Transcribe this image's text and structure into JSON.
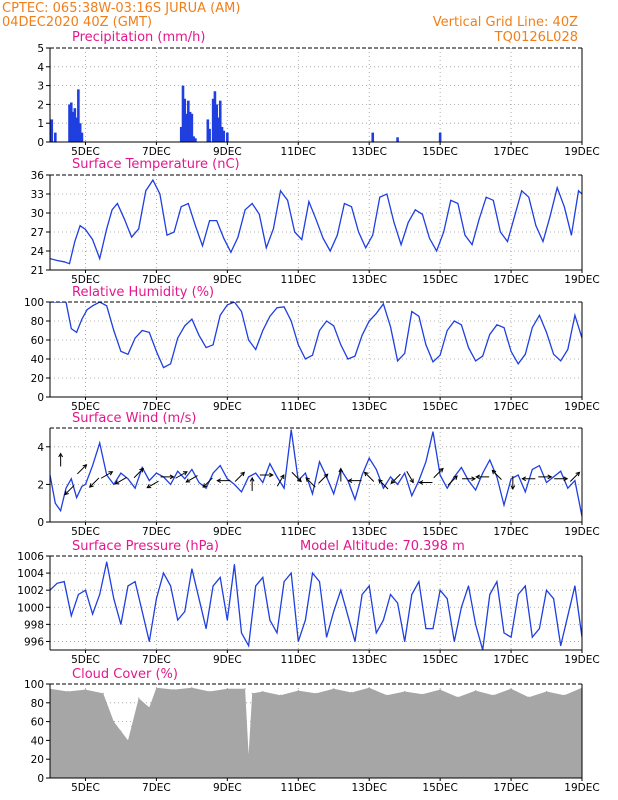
{
  "header": {
    "line1": "CPTEC:   065:38W-03:16S   JURUA (AM)",
    "line2": "04DEC2020 40Z (GMT)",
    "right1": "Vertical Grid Line: 40Z",
    "right2": "TQ0126L028"
  },
  "x_axis": {
    "start": "04DEC2020",
    "end": "19DEC2020",
    "ticks": [
      "5DEC",
      "7DEC",
      "9DEC",
      "11DEC",
      "13DEC",
      "15DEC",
      "17DEC",
      "19DEC"
    ]
  },
  "colors": {
    "line": "#1f3fe0",
    "bar": "#1f3fe0",
    "cloud": "#a6a6a6",
    "header": "#f07f1a",
    "title": "#e4188c",
    "wind_arrow": "#000000"
  },
  "chart_data": [
    {
      "type": "bar",
      "title": "Precipitation (mm/h)",
      "ylim": [
        0,
        5
      ],
      "yticks": [
        0,
        1,
        2,
        3,
        4,
        5
      ],
      "grid": true,
      "x": [
        0.05,
        0.15,
        0.55,
        0.6,
        0.65,
        0.7,
        0.75,
        0.8,
        0.85,
        0.9,
        3.7,
        3.75,
        3.8,
        3.85,
        3.9,
        3.95,
        4.0,
        4.05,
        4.1,
        4.45,
        4.5,
        4.6,
        4.65,
        4.7,
        4.75,
        4.8,
        4.85,
        4.9,
        5.0,
        9.1,
        9.8,
        11.0
      ],
      "values": [
        1.2,
        0.5,
        2.0,
        2.1,
        1.6,
        1.8,
        1.3,
        2.8,
        1.0,
        0.5,
        0.8,
        3.0,
        2.3,
        1.5,
        2.2,
        1.6,
        1.5,
        0.3,
        0.2,
        1.2,
        0.7,
        2.3,
        2.7,
        2.0,
        1.3,
        2.2,
        0.8,
        0.6,
        0.5,
        0.5,
        0.25,
        0.5
      ]
    },
    {
      "type": "line",
      "title": "Surface Temperature (nC)",
      "ylim": [
        21,
        36
      ],
      "yticks": [
        21,
        24,
        27,
        30,
        33,
        36
      ],
      "grid": true,
      "x": [
        0,
        0.2,
        0.4,
        0.55,
        0.7,
        0.85,
        1.0,
        1.2,
        1.4,
        1.6,
        1.75,
        1.9,
        2.1,
        2.3,
        2.5,
        2.7,
        2.9,
        3.1,
        3.3,
        3.5,
        3.7,
        3.9,
        4.1,
        4.3,
        4.5,
        4.7,
        4.9,
        5.1,
        5.3,
        5.5,
        5.7,
        5.9,
        6.1,
        6.3,
        6.5,
        6.7,
        6.9,
        7.1,
        7.3,
        7.5,
        7.7,
        7.9,
        8.1,
        8.3,
        8.5,
        8.7,
        8.9,
        9.1,
        9.3,
        9.5,
        9.7,
        9.9,
        10.1,
        10.3,
        10.5,
        10.7,
        10.9,
        11.1,
        11.3,
        11.5,
        11.7,
        11.9,
        12.1,
        12.3,
        12.5,
        12.7,
        12.9,
        13.1,
        13.3,
        13.5,
        13.7,
        13.9,
        14.1,
        14.3,
        14.5,
        14.7,
        14.9,
        15.0
      ],
      "values": [
        22.8,
        22.5,
        22.3,
        22.0,
        25.5,
        28.0,
        27.4,
        25.8,
        22.8,
        27.5,
        30.5,
        31.5,
        29.0,
        26.2,
        27.5,
        33.5,
        35.2,
        33.0,
        26.5,
        27.0,
        31.0,
        31.5,
        28.0,
        24.8,
        28.8,
        28.8,
        26.0,
        23.8,
        26.2,
        30.5,
        31.5,
        29.8,
        24.5,
        27.5,
        33.5,
        32.0,
        27.0,
        25.8,
        31.8,
        29.0,
        26.0,
        24.0,
        26.5,
        31.5,
        31.0,
        27.0,
        24.5,
        26.5,
        32.5,
        33.0,
        28.5,
        25.0,
        28.5,
        30.5,
        29.8,
        26.0,
        24.0,
        27.0,
        32.0,
        31.5,
        26.5,
        25.0,
        29.0,
        32.5,
        32.0,
        27.0,
        25.5,
        29.5,
        33.5,
        32.5,
        28.0,
        25.5,
        29.5,
        34.0,
        31.0,
        26.5,
        33.5,
        33.0
      ]
    },
    {
      "type": "line",
      "title": "Relative Humidity (%)",
      "ylim": [
        0,
        100
      ],
      "yticks": [
        0,
        20,
        40,
        60,
        80,
        100
      ],
      "grid": true,
      "x": [
        0,
        0.15,
        0.3,
        0.45,
        0.6,
        0.75,
        0.9,
        1.05,
        1.2,
        1.4,
        1.6,
        1.8,
        2.0,
        2.2,
        2.4,
        2.6,
        2.8,
        3.0,
        3.2,
        3.4,
        3.6,
        3.8,
        4.0,
        4.2,
        4.4,
        4.6,
        4.8,
        5.0,
        5.2,
        5.4,
        5.6,
        5.8,
        6.0,
        6.2,
        6.4,
        6.6,
        6.8,
        7.0,
        7.2,
        7.4,
        7.6,
        7.8,
        8.0,
        8.2,
        8.4,
        8.6,
        8.8,
        9.0,
        9.2,
        9.4,
        9.6,
        9.8,
        10.0,
        10.2,
        10.4,
        10.6,
        10.8,
        11.0,
        11.2,
        11.4,
        11.6,
        11.8,
        12.0,
        12.2,
        12.4,
        12.6,
        12.8,
        13.0,
        13.2,
        13.4,
        13.6,
        13.8,
        14.0,
        14.2,
        14.4,
        14.6,
        14.8,
        15.0
      ],
      "values": [
        100,
        100,
        100,
        100,
        72,
        68,
        82,
        92,
        96,
        100,
        96,
        70,
        48,
        45,
        62,
        70,
        68,
        48,
        31,
        35,
        62,
        75,
        82,
        65,
        52,
        55,
        86,
        97,
        100,
        90,
        60,
        50,
        70,
        85,
        94,
        95,
        80,
        55,
        40,
        44,
        70,
        80,
        75,
        55,
        40,
        43,
        65,
        80,
        88,
        98,
        74,
        38,
        46,
        90,
        85,
        55,
        37,
        44,
        70,
        80,
        76,
        52,
        38,
        43,
        66,
        76,
        73,
        48,
        35,
        45,
        73,
        86,
        68,
        45,
        38,
        50,
        86,
        62
      ]
    },
    {
      "type": "line",
      "title": "Surface Wind (m/s)",
      "ylim": [
        0,
        5
      ],
      "yticks": [
        0,
        2,
        4
      ],
      "grid": true,
      "x": [
        0,
        0.15,
        0.3,
        0.45,
        0.6,
        0.75,
        0.9,
        1.0,
        1.2,
        1.4,
        1.6,
        1.8,
        2.0,
        2.2,
        2.4,
        2.6,
        2.8,
        3.0,
        3.2,
        3.4,
        3.6,
        3.8,
        4.0,
        4.2,
        4.4,
        4.6,
        4.8,
        5.0,
        5.2,
        5.4,
        5.6,
        5.8,
        6.0,
        6.2,
        6.4,
        6.6,
        6.8,
        7.0,
        7.2,
        7.4,
        7.6,
        7.8,
        8.0,
        8.2,
        8.4,
        8.6,
        8.8,
        9.0,
        9.2,
        9.4,
        9.6,
        9.8,
        10.0,
        10.2,
        10.4,
        10.6,
        10.8,
        11.0,
        11.2,
        11.4,
        11.6,
        11.8,
        12.0,
        12.2,
        12.4,
        12.6,
        12.8,
        13.0,
        13.2,
        13.4,
        13.6,
        13.8,
        14.0,
        14.2,
        14.4,
        14.6,
        14.8,
        15.0
      ],
      "values": [
        2.5,
        1.0,
        0.6,
        1.8,
        2.3,
        1.3,
        1.9,
        2.0,
        3.0,
        4.2,
        2.5,
        2.0,
        2.6,
        2.3,
        1.8,
        2.9,
        2.2,
        2.6,
        2.4,
        2.0,
        2.7,
        2.3,
        2.8,
        2.1,
        1.8,
        2.6,
        3.0,
        2.3,
        2.0,
        1.6,
        2.4,
        2.6,
        2.1,
        3.1,
        2.4,
        1.8,
        4.9,
        2.2,
        2.6,
        1.5,
        3.2,
        2.4,
        1.5,
        2.8,
        2.2,
        1.2,
        2.5,
        3.4,
        2.8,
        1.8,
        2.4,
        2.0,
        2.6,
        1.4,
        2.2,
        3.2,
        4.8,
        2.5,
        1.8,
        2.4,
        2.9,
        2.2,
        1.7,
        2.6,
        3.3,
        2.4,
        0.9,
        2.3,
        2.5,
        1.6,
        2.8,
        3.0,
        2.1,
        2.4,
        2.7,
        1.8,
        2.2,
        0.3
      ]
    },
    {
      "type": "line",
      "title": "Surface Pressure (hPa)",
      "annotation": "Model Altitude: 70.398  m",
      "ylim": [
        995,
        1006
      ],
      "yticks": [
        996,
        998,
        1000,
        1002,
        1004,
        1006
      ],
      "grid": true,
      "x": [
        0,
        0.2,
        0.4,
        0.6,
        0.8,
        1.0,
        1.2,
        1.4,
        1.6,
        1.8,
        2.0,
        2.2,
        2.4,
        2.6,
        2.8,
        3.0,
        3.2,
        3.4,
        3.6,
        3.8,
        4.0,
        4.2,
        4.4,
        4.6,
        4.8,
        5.0,
        5.2,
        5.4,
        5.6,
        5.8,
        6.0,
        6.2,
        6.4,
        6.6,
        6.8,
        7.0,
        7.2,
        7.4,
        7.6,
        7.8,
        8.0,
        8.2,
        8.4,
        8.6,
        8.8,
        9.0,
        9.2,
        9.4,
        9.6,
        9.8,
        10.0,
        10.2,
        10.4,
        10.6,
        10.8,
        11.0,
        11.2,
        11.4,
        11.6,
        11.8,
        12.0,
        12.2,
        12.4,
        12.6,
        12.8,
        13.0,
        13.2,
        13.4,
        13.6,
        13.8,
        14.0,
        14.2,
        14.4,
        14.6,
        14.8,
        15.0
      ],
      "values": [
        1002.0,
        1002.8,
        1003.0,
        999.0,
        1001.5,
        1002.0,
        999.2,
        1001.5,
        1005.3,
        1001.0,
        998.0,
        1002.5,
        1003.0,
        999.5,
        996.0,
        1001.0,
        1004.0,
        1002.5,
        998.5,
        999.5,
        1004.5,
        1001.0,
        997.5,
        1002.5,
        1003.5,
        998.5,
        1005.0,
        997.0,
        995.5,
        1002.5,
        1003.5,
        998.5,
        997.0,
        1003.0,
        1004.0,
        996.0,
        998.5,
        1004.0,
        1003.0,
        996.5,
        999.5,
        1002.0,
        999.0,
        996.0,
        1001.5,
        1002.5,
        997.0,
        998.5,
        1001.5,
        1000.5,
        996.0,
        1001.5,
        1003.0,
        997.5,
        997.5,
        1002.0,
        1001.0,
        996.0,
        1000.0,
        1002.5,
        998.0,
        995.0,
        1001.5,
        1003.0,
        997.0,
        996.5,
        1001.5,
        1002.5,
        996.5,
        997.5,
        1002.0,
        1001.0,
        995.5,
        999.0,
        1002.5,
        996.5
      ]
    },
    {
      "type": "area",
      "title": "Cloud Cover (%)",
      "ylim": [
        0,
        100
      ],
      "yticks": [
        0,
        20,
        40,
        60,
        80,
        100
      ],
      "grid": true,
      "x": [
        0,
        0.5,
        1.0,
        1.5,
        1.8,
        2.0,
        2.2,
        2.3,
        2.5,
        2.8,
        3.0,
        3.5,
        4.0,
        4.5,
        5.0,
        5.5,
        5.6,
        5.7,
        6.0,
        6.5,
        7.0,
        7.5,
        8.0,
        8.5,
        9.0,
        9.5,
        10.0,
        10.5,
        11.0,
        11.5,
        12.0,
        12.5,
        13.0,
        13.5,
        14.0,
        14.5,
        15.0
      ],
      "values": [
        95,
        92,
        94,
        90,
        60,
        50,
        40,
        55,
        85,
        75,
        96,
        94,
        96,
        92,
        95,
        95,
        25,
        90,
        92,
        88,
        93,
        90,
        95,
        91,
        96,
        88,
        92,
        89,
        94,
        86,
        93,
        88,
        95,
        86,
        92,
        88,
        96
      ]
    }
  ],
  "wind_arrows": {
    "x": [
      0.3,
      0.55,
      0.9,
      1.25,
      1.6,
      2.0,
      2.5,
      2.9,
      3.3,
      3.7,
      4.0,
      4.45,
      4.9,
      5.35,
      5.7,
      6.1,
      6.5,
      6.95,
      7.35,
      7.7,
      8.2,
      8.6,
      9.0,
      9.4,
      9.75,
      10.15,
      10.6,
      10.95,
      11.35,
      11.8,
      12.2,
      12.6,
      13.05,
      13.5,
      13.95,
      14.4,
      14.8
    ],
    "angles": [
      90,
      225,
      45,
      225,
      30,
      210,
      45,
      210,
      0,
      30,
      210,
      225,
      180,
      45,
      90,
      0,
      60,
      315,
      135,
      45,
      90,
      180,
      135,
      135,
      225,
      300,
      180,
      45,
      45,
      0,
      180,
      135,
      270,
      180,
      0,
      0,
      45
    ],
    "y": [
      3.3,
      1.7,
      2.8,
      2.1,
      2.5,
      2.2,
      2.6,
      2.0,
      2.4,
      2.5,
      2.3,
      2.1,
      2.2,
      2.4,
      2.0,
      2.5,
      2.2,
      2.4,
      2.1,
      2.3,
      2.5,
      2.2,
      2.4,
      2.0,
      2.3,
      2.4,
      2.1,
      2.6,
      2.2,
      2.3,
      2.4,
      2.5,
      2.1,
      2.3,
      2.4,
      2.3,
      2.4
    ]
  }
}
